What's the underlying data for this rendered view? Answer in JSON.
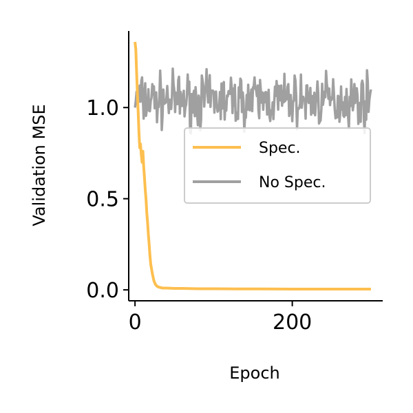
{
  "chart_data": {
    "type": "line",
    "title": "",
    "xlabel": "Epoch",
    "ylabel": "Validation MSE",
    "xlim": [
      -8,
      315
    ],
    "ylim": [
      -0.06,
      1.42
    ],
    "xticks": [
      0,
      200
    ],
    "yticks": [
      0.0,
      0.5,
      1.0
    ],
    "ytick_labels": [
      "0.0",
      "0.5",
      "1.0"
    ],
    "grid": false,
    "legend_placement": "center-right",
    "series": [
      {
        "name": "Spec.",
        "color": "#fdbf4f",
        "x": [
          0,
          1,
          2,
          3,
          4,
          5,
          6,
          7,
          8,
          9,
          10,
          11,
          12,
          13,
          14,
          15,
          16,
          17,
          18,
          19,
          20,
          22,
          24,
          26,
          28,
          30,
          35,
          40,
          50,
          60,
          80,
          100,
          130,
          160,
          200,
          250,
          300
        ],
        "y": [
          1.36,
          1.32,
          1.2,
          1.08,
          0.98,
          0.86,
          0.78,
          0.8,
          0.74,
          0.7,
          0.76,
          0.68,
          0.62,
          0.55,
          0.5,
          0.42,
          0.37,
          0.3,
          0.25,
          0.19,
          0.14,
          0.09,
          0.05,
          0.03,
          0.02,
          0.015,
          0.01,
          0.01,
          0.008,
          0.008,
          0.006,
          0.006,
          0.005,
          0.005,
          0.004,
          0.004,
          0.004
        ]
      },
      {
        "name": "No Spec.",
        "color": "#a0a0a0",
        "noise_seed": 7,
        "mean": 1.04,
        "x_start": 0,
        "x_end": 300,
        "amplitude": 0.07
      }
    ]
  }
}
